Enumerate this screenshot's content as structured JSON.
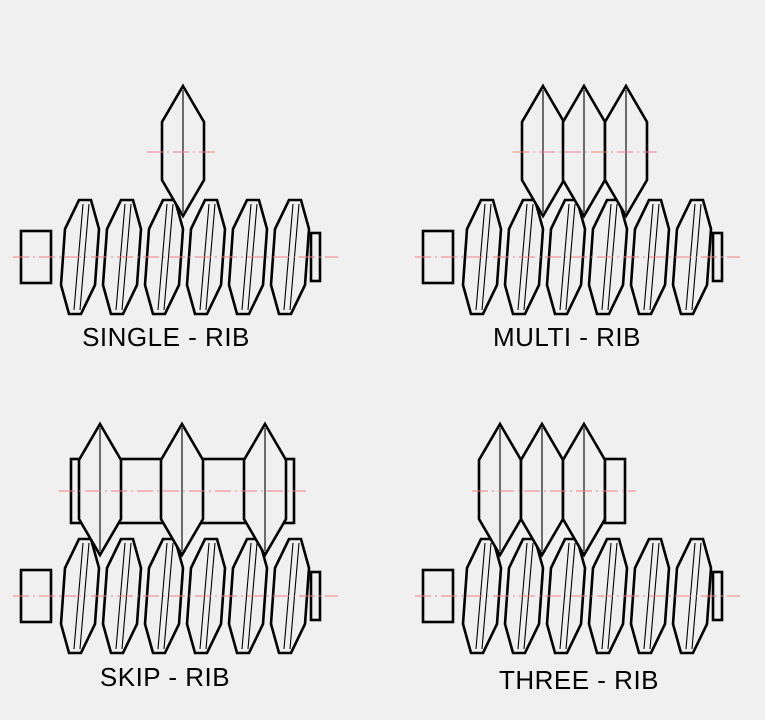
{
  "diagram": {
    "colors": {
      "background": "#f0f0f0",
      "stroke": "#000000",
      "centerline": "#f08080"
    },
    "panels": [
      {
        "id": "single",
        "label": "SINGLE - RIB"
      },
      {
        "id": "multi",
        "label": "MULTI - RIB"
      },
      {
        "id": "skip",
        "label": "SKIP - RIB"
      },
      {
        "id": "three",
        "label": "THREE - RIB"
      }
    ]
  }
}
